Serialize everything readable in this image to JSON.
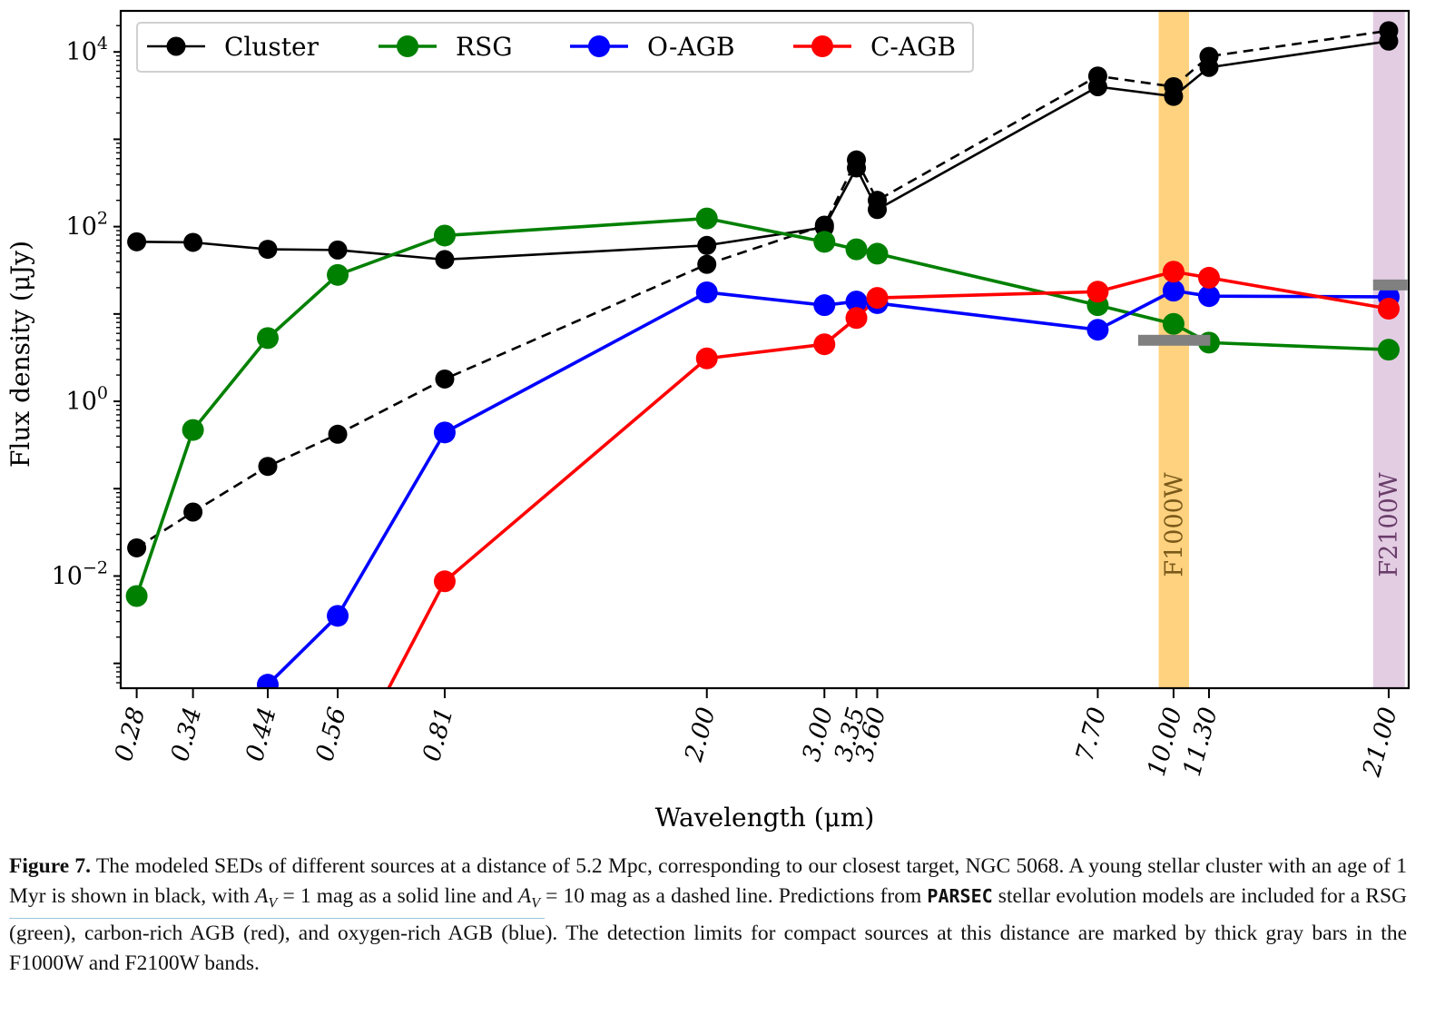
{
  "chart_data": {
    "type": "line",
    "title": "",
    "xlabel": "Wavelength (μm)",
    "ylabel": "Flux density (μJy)",
    "xscale": "log",
    "yscale": "log",
    "xlim": [
      0.265,
      22.5
    ],
    "ylim": [
      0.00052,
      29500
    ],
    "grid": false,
    "legend": {
      "placement": "top-left",
      "columns": 4,
      "entries": [
        "Cluster",
        "RSG",
        "O-AGB",
        "C-AGB"
      ]
    },
    "x": [
      0.28,
      0.34,
      0.44,
      0.56,
      0.81,
      2.0,
      3.0,
      3.35,
      3.6,
      7.7,
      10.0,
      11.3,
      21.0
    ],
    "xtick_labels": [
      "0.28",
      "0.34",
      "0.44",
      "0.56",
      "0.81",
      "2.00",
      "3.00",
      "3.35",
      "3.60",
      "7.70",
      "10.00",
      "11.30",
      "21.00"
    ],
    "yticks": [
      {
        "value": 0.01,
        "base": "10",
        "exp": "−2"
      },
      {
        "value": 1,
        "base": "10",
        "exp": "0"
      },
      {
        "value": 100,
        "base": "10",
        "exp": "2"
      },
      {
        "value": 10000,
        "base": "10",
        "exp": "4"
      }
    ],
    "series": [
      {
        "name": "Cluster",
        "label": "Cluster (A_V = 1 mag)",
        "color": "#000000",
        "style": "solid",
        "in_legend": true,
        "values": [
          67,
          66,
          55,
          54,
          42,
          61,
          98,
          470,
          157,
          4000,
          3100,
          6650,
          13300
        ]
      },
      {
        "name": "Cluster A_V=10",
        "label": "Cluster (A_V = 10 mag)",
        "color": "#000000",
        "style": "dashed",
        "in_legend": false,
        "values": [
          0.021,
          0.054,
          0.18,
          0.42,
          1.8,
          37,
          104,
          580,
          200,
          5300,
          4000,
          8900,
          17500
        ]
      },
      {
        "name": "RSG",
        "label": "RSG",
        "color": "#008000",
        "style": "solid",
        "in_legend": true,
        "values": [
          0.0059,
          0.47,
          5.3,
          28,
          79,
          124,
          67,
          55,
          49,
          12.6,
          7.7,
          4.7,
          3.9
        ]
      },
      {
        "name": "O-AGB",
        "label": "O-AGB",
        "color": "#0000ff",
        "style": "solid",
        "in_legend": true,
        "values": [
          null,
          null,
          0.00057,
          0.0035,
          0.44,
          17.7,
          12.6,
          13.9,
          13.3,
          6.6,
          18.5,
          16,
          15.7
        ]
      },
      {
        "name": "C-AGB",
        "label": "C-AGB",
        "color": "#ff0000",
        "style": "solid",
        "in_legend": true,
        "values": [
          null,
          null,
          null,
          4e-05,
          0.0087,
          3.1,
          4.5,
          9.0,
          15.3,
          18,
          30.5,
          26,
          11.5
        ]
      }
    ],
    "bands": [
      {
        "name": "F1000W",
        "center": 10.0,
        "range": [
          9.5,
          10.55
        ],
        "color": "#ffd27f",
        "text_color": "#7a5a1a"
      },
      {
        "name": "F2100W",
        "center": 21.0,
        "range": [
          19.9,
          22.2
        ],
        "color": "#e3cde3",
        "text_color": "#6a3d6a"
      }
    ],
    "detection_limits": [
      {
        "band": "F1000W",
        "value": 5.0,
        "x_range": [
          8.85,
          11.35
        ],
        "color": "#808080"
      },
      {
        "band": "F2100W",
        "value": 21.5,
        "x_range": [
          19.9,
          22.4
        ],
        "color": "#808080"
      }
    ]
  },
  "caption": {
    "figure_number": "Figure 7.",
    "segments": [
      {
        "t": " The modeled SEDs of different sources at a distance of 5.2 Mpc, corresponding to our closest target, NGC 5068. A young stellar cluster with an age of 1 Myr is shown in black, with "
      },
      {
        "t": "A",
        "math": true
      },
      {
        "t": "V",
        "sub": true
      },
      {
        "t": " = 1 mag as a solid line and "
      },
      {
        "t": "A",
        "math": true
      },
      {
        "t": "V",
        "sub": true
      },
      {
        "t": " = 10 mag as a dashed line. Predictions from "
      },
      {
        "t": "PARSEC",
        "mono": true
      },
      {
        "t": " stellar evolution models are included for a RSG (green), carbon-rich AGB (red), and oxygen-rich AGB (blue). The detection limits for compact sources at this distance are marked by thick gray bars in the F1000W and F2100W bands."
      }
    ]
  }
}
